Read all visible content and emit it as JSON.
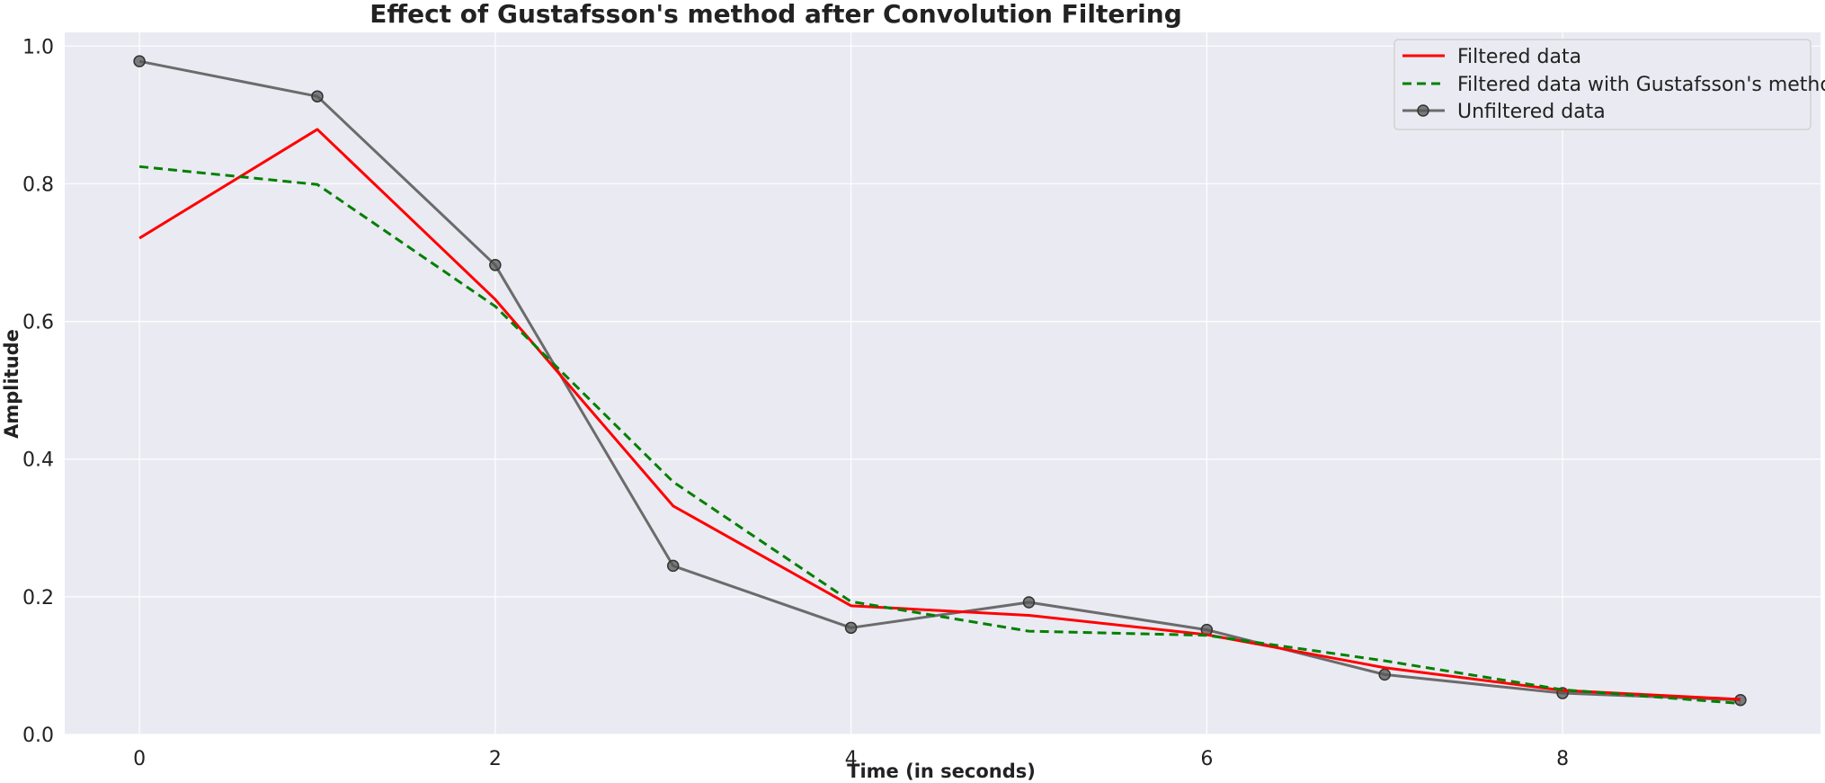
{
  "chart_data": {
    "type": "line",
    "title": "Effect of Gustafsson's method after Convolution Filtering",
    "xlabel": "Time (in seconds)",
    "ylabel": "Amplitude",
    "x": [
      0,
      1,
      2,
      3,
      4,
      5,
      6,
      7,
      8,
      9
    ],
    "xlim": [
      -0.42,
      9.45
    ],
    "ylim": [
      0.0,
      1.02
    ],
    "xticks": [
      0,
      2,
      4,
      6,
      8
    ],
    "yticks": [
      0.0,
      0.2,
      0.4,
      0.6,
      0.8,
      1.0
    ],
    "xtick_labels": [
      "0",
      "2",
      "4",
      "6",
      "8"
    ],
    "ytick_labels": [
      "0.0",
      "0.2",
      "0.4",
      "0.6",
      "0.8",
      "1.0"
    ],
    "grid": true,
    "legend_position": "top-right",
    "background_color": "#eaeaf2",
    "grid_color": "#ffffff",
    "series": [
      {
        "name": "Filtered data",
        "values": [
          0.721,
          0.879,
          0.632,
          0.332,
          0.187,
          0.173,
          0.145,
          0.097,
          0.064,
          0.051
        ],
        "color": "#ff0000",
        "style": "solid",
        "marker": "none"
      },
      {
        "name": "Filtered data with Gustafsson's method",
        "values": [
          0.825,
          0.799,
          0.622,
          0.367,
          0.193,
          0.15,
          0.144,
          0.107,
          0.065,
          0.045
        ],
        "color": "#008000",
        "style": "dashed",
        "marker": "none"
      },
      {
        "name": "Unfiltered data",
        "values": [
          0.978,
          0.927,
          0.682,
          0.245,
          0.155,
          0.192,
          0.152,
          0.087,
          0.06,
          0.05
        ],
        "color": "#555555",
        "style": "solid",
        "marker": "circle"
      }
    ]
  }
}
